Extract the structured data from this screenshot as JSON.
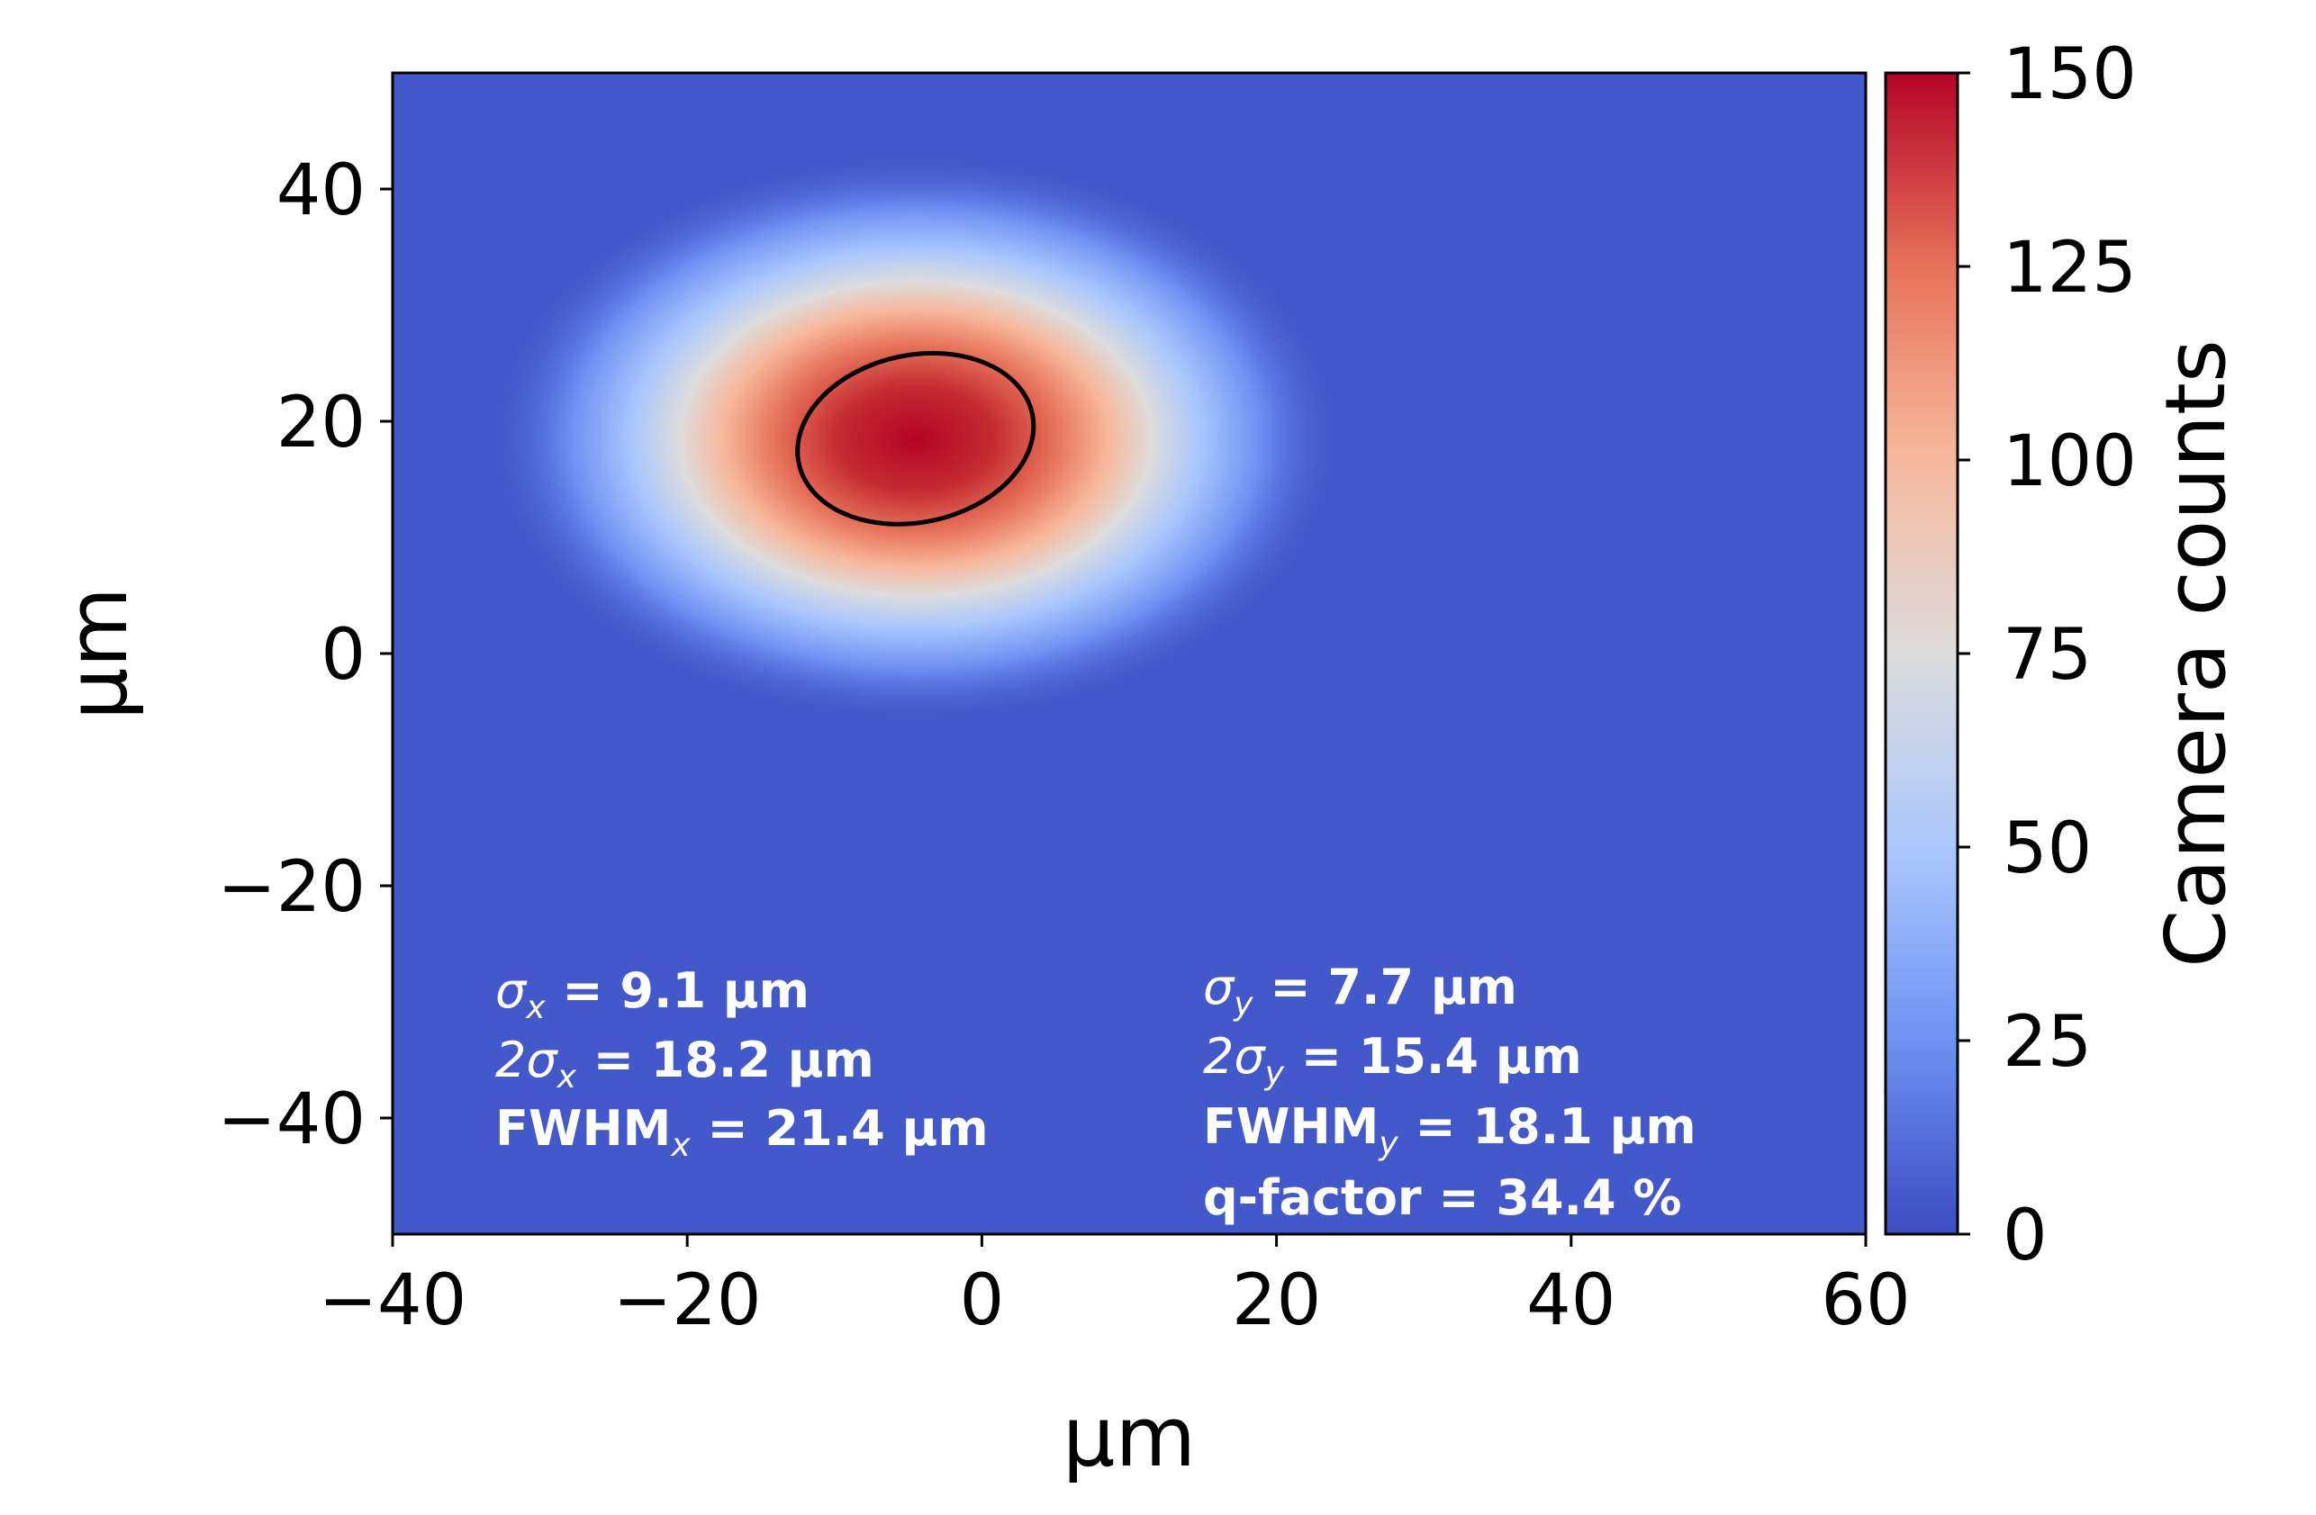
{
  "chart_data": {
    "type": "heatmap",
    "title": "",
    "xlabel": "µm",
    "ylabel": "µm",
    "xlim": [
      -40,
      60
    ],
    "ylim": [
      -50,
      50
    ],
    "x_ticks": [
      -40,
      -20,
      0,
      20,
      40,
      60
    ],
    "x_tick_labels": [
      "−40",
      "−20",
      "0",
      "20",
      "40",
      "60"
    ],
    "y_ticks": [
      -40,
      -20,
      0,
      20,
      40
    ],
    "y_tick_labels": [
      "−40",
      "−20",
      "0",
      "20",
      "40"
    ],
    "colorbar": {
      "label": "Camera counts",
      "range": [
        0,
        150
      ],
      "ticks": [
        0,
        25,
        50,
        75,
        100,
        125,
        150
      ],
      "tick_labels": [
        "0",
        "25",
        "50",
        "75",
        "100",
        "125",
        "150"
      ],
      "colormap": "coolwarm",
      "colors": [
        "#3b4cc0",
        "#6f92f3",
        "#aac7fd",
        "#dddcdc",
        "#f7b89c",
        "#e7745b",
        "#b40426"
      ]
    },
    "beam": {
      "center_x": -4.5,
      "center_y": 18.5,
      "peak_counts": 150,
      "background_counts": 6,
      "sigma_x": 9.1,
      "sigma_y": 7.7
    },
    "fit_ellipse": {
      "center_x": -4.5,
      "center_y": 18.5,
      "width": 16.2,
      "height": 14.4,
      "angle_deg": 12
    },
    "annotations_left": {
      "sigma_line": {
        "symbol": "σ",
        "sub": "x",
        "rest": " = 9.1 µm"
      },
      "two_sigma_line": {
        "prefix": "2",
        "symbol": "σ",
        "sub": "x",
        "rest": " = 18.2 µm"
      },
      "fwhm_line": {
        "prefix": "FWHM",
        "sub": "x",
        "rest": " = 21.4 µm"
      }
    },
    "annotations_right": {
      "sigma_line": {
        "symbol": "σ",
        "sub": "y",
        "rest": " = 7.7 µm"
      },
      "two_sigma_line": {
        "prefix": "2",
        "symbol": "σ",
        "sub": "y",
        "rest": " = 15.4 µm"
      },
      "fwhm_line": {
        "prefix": "FWHM",
        "sub": "y",
        "rest": " = 18.1 µm"
      },
      "q_factor": "q-factor = 34.4 %"
    }
  }
}
